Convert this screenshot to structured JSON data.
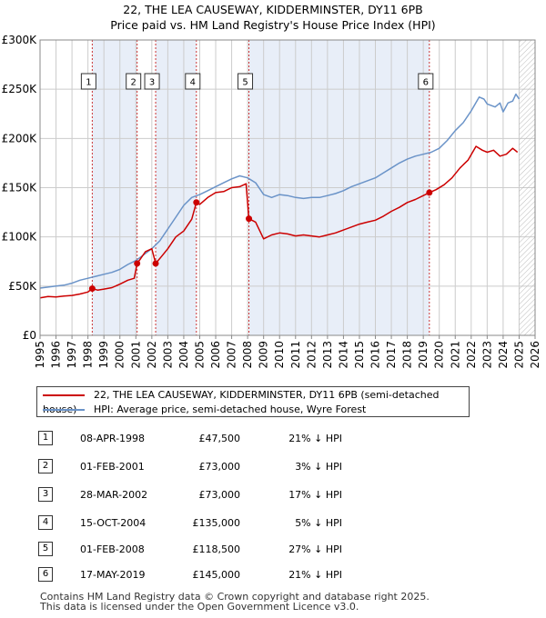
{
  "title_line1": "22, THE LEA CAUSEWAY, KIDDERMINSTER, DY11 6PB",
  "title_line2": "Price paid vs. HM Land Registry's House Price Index (HPI)",
  "colors": {
    "property": "#cc0000",
    "hpi": "#6a93c8",
    "shade": "#e8eef8",
    "marker_line": "#cc3333"
  },
  "chart_data": {
    "type": "line",
    "xlim": [
      1995,
      2026
    ],
    "ylim": [
      0,
      300000
    ],
    "y_ticks": [
      0,
      50000,
      100000,
      150000,
      200000,
      250000,
      300000
    ],
    "y_tick_labels": [
      "£0",
      "£50K",
      "£100K",
      "£150K",
      "£200K",
      "£250K",
      "£300K"
    ],
    "x_ticks": [
      1995,
      1996,
      1997,
      1998,
      1999,
      2000,
      2001,
      2002,
      2003,
      2004,
      2005,
      2006,
      2007,
      2008,
      2009,
      2010,
      2011,
      2012,
      2013,
      2014,
      2015,
      2016,
      2017,
      2018,
      2019,
      2020,
      2021,
      2022,
      2023,
      2024,
      2025,
      2026
    ],
    "x_tick_labels": [
      "1995",
      "1996",
      "1997",
      "1998",
      "1999",
      "2000",
      "2001",
      "2002",
      "2003",
      "2004",
      "2005",
      "2006",
      "2007",
      "2008",
      "2009",
      "2010",
      "2011",
      "2012",
      "2013",
      "2014",
      "2015",
      "2016",
      "2017",
      "2018",
      "2019",
      "2020",
      "2021",
      "2022",
      "2023",
      "2024",
      "2025",
      "2026"
    ],
    "future_hatch_from": 2025.0,
    "shaded_spans": [
      [
        1998.27,
        2001.08
      ],
      [
        2002.24,
        2004.79
      ],
      [
        2008.08,
        2019.38
      ]
    ],
    "series": [
      {
        "name": "22, THE LEA CAUSEWAY, KIDDERMINSTER, DY11 6PB (semi-detached house)",
        "color_key": "property",
        "points": [
          [
            1995.0,
            38000
          ],
          [
            1995.5,
            39500
          ],
          [
            1996.0,
            39000
          ],
          [
            1996.5,
            40000
          ],
          [
            1997.0,
            40500
          ],
          [
            1997.5,
            42000
          ],
          [
            1998.0,
            44000
          ],
          [
            1998.27,
            47500
          ],
          [
            1998.6,
            46000
          ],
          [
            1999.0,
            47000
          ],
          [
            1999.5,
            48500
          ],
          [
            2000.0,
            52000
          ],
          [
            2000.5,
            56000
          ],
          [
            2000.9,
            58000
          ],
          [
            2001.08,
            73000
          ],
          [
            2001.3,
            78000
          ],
          [
            2001.6,
            85000
          ],
          [
            2002.0,
            88000
          ],
          [
            2002.24,
            73000
          ],
          [
            2002.6,
            80000
          ],
          [
            2003.0,
            88000
          ],
          [
            2003.5,
            100000
          ],
          [
            2004.0,
            106000
          ],
          [
            2004.5,
            118000
          ],
          [
            2004.79,
            135000
          ],
          [
            2005.0,
            133000
          ],
          [
            2005.5,
            140000
          ],
          [
            2006.0,
            145000
          ],
          [
            2006.5,
            146000
          ],
          [
            2007.0,
            150000
          ],
          [
            2007.5,
            151000
          ],
          [
            2007.9,
            154000
          ],
          [
            2008.08,
            118500
          ],
          [
            2008.5,
            115000
          ],
          [
            2009.0,
            98000
          ],
          [
            2009.5,
            102000
          ],
          [
            2010.0,
            104000
          ],
          [
            2010.5,
            103000
          ],
          [
            2011.0,
            101000
          ],
          [
            2011.5,
            102000
          ],
          [
            2012.0,
            101000
          ],
          [
            2012.5,
            100000
          ],
          [
            2013.0,
            102000
          ],
          [
            2013.5,
            104000
          ],
          [
            2014.0,
            107000
          ],
          [
            2014.5,
            110000
          ],
          [
            2015.0,
            113000
          ],
          [
            2015.5,
            115000
          ],
          [
            2016.0,
            117000
          ],
          [
            2016.5,
            121000
          ],
          [
            2017.0,
            126000
          ],
          [
            2017.5,
            130000
          ],
          [
            2018.0,
            135000
          ],
          [
            2018.5,
            138000
          ],
          [
            2019.0,
            142000
          ],
          [
            2019.38,
            145000
          ],
          [
            2019.8,
            148000
          ],
          [
            2020.3,
            153000
          ],
          [
            2020.8,
            160000
          ],
          [
            2021.3,
            170000
          ],
          [
            2021.8,
            178000
          ],
          [
            2022.3,
            192000
          ],
          [
            2022.7,
            188000
          ],
          [
            2023.0,
            186000
          ],
          [
            2023.4,
            188000
          ],
          [
            2023.8,
            182000
          ],
          [
            2024.2,
            184000
          ],
          [
            2024.6,
            190000
          ],
          [
            2024.9,
            186000
          ]
        ]
      },
      {
        "name": "HPI: Average price, semi-detached house, Wyre Forest",
        "color_key": "hpi",
        "points": [
          [
            1995.0,
            48000
          ],
          [
            1995.5,
            49000
          ],
          [
            1996.0,
            50000
          ],
          [
            1996.5,
            51000
          ],
          [
            1997.0,
            53000
          ],
          [
            1997.5,
            56000
          ],
          [
            1998.0,
            58000
          ],
          [
            1998.5,
            60000
          ],
          [
            1999.0,
            62000
          ],
          [
            1999.5,
            64000
          ],
          [
            2000.0,
            67000
          ],
          [
            2000.5,
            72000
          ],
          [
            2001.0,
            76000
          ],
          [
            2001.5,
            82000
          ],
          [
            2002.0,
            88000
          ],
          [
            2002.5,
            96000
          ],
          [
            2003.0,
            108000
          ],
          [
            2003.5,
            120000
          ],
          [
            2004.0,
            132000
          ],
          [
            2004.5,
            140000
          ],
          [
            2005.0,
            143000
          ],
          [
            2005.5,
            147000
          ],
          [
            2006.0,
            151000
          ],
          [
            2006.5,
            155000
          ],
          [
            2007.0,
            159000
          ],
          [
            2007.5,
            162000
          ],
          [
            2008.0,
            160000
          ],
          [
            2008.5,
            155000
          ],
          [
            2009.0,
            143000
          ],
          [
            2009.5,
            140000
          ],
          [
            2010.0,
            143000
          ],
          [
            2010.5,
            142000
          ],
          [
            2011.0,
            140000
          ],
          [
            2011.5,
            139000
          ],
          [
            2012.0,
            140000
          ],
          [
            2012.5,
            140000
          ],
          [
            2013.0,
            142000
          ],
          [
            2013.5,
            144000
          ],
          [
            2014.0,
            147000
          ],
          [
            2014.5,
            151000
          ],
          [
            2015.0,
            154000
          ],
          [
            2015.5,
            157000
          ],
          [
            2016.0,
            160000
          ],
          [
            2016.5,
            165000
          ],
          [
            2017.0,
            170000
          ],
          [
            2017.5,
            175000
          ],
          [
            2018.0,
            179000
          ],
          [
            2018.5,
            182000
          ],
          [
            2019.0,
            184000
          ],
          [
            2019.5,
            186000
          ],
          [
            2020.0,
            190000
          ],
          [
            2020.5,
            198000
          ],
          [
            2021.0,
            208000
          ],
          [
            2021.5,
            216000
          ],
          [
            2022.0,
            228000
          ],
          [
            2022.5,
            242000
          ],
          [
            2022.8,
            240000
          ],
          [
            2023.0,
            235000
          ],
          [
            2023.5,
            232000
          ],
          [
            2023.8,
            236000
          ],
          [
            2024.0,
            227000
          ],
          [
            2024.3,
            236000
          ],
          [
            2024.6,
            238000
          ],
          [
            2024.8,
            245000
          ],
          [
            2025.0,
            240000
          ]
        ]
      }
    ],
    "sales": [
      {
        "id": "1",
        "x": 1998.27,
        "price": 47500
      },
      {
        "id": "2",
        "x": 2001.08,
        "price": 73000
      },
      {
        "id": "3",
        "x": 2002.24,
        "price": 73000
      },
      {
        "id": "4",
        "x": 2004.79,
        "price": 135000
      },
      {
        "id": "5",
        "x": 2008.08,
        "price": 118500
      },
      {
        "id": "6",
        "x": 2019.38,
        "price": 145000
      }
    ]
  },
  "legend": {
    "property_label": "22, THE LEA CAUSEWAY, KIDDERMINSTER, DY11 6PB (semi-detached house)",
    "hpi_label": "HPI: Average price, semi-detached house, Wyre Forest"
  },
  "sales_table": [
    {
      "num": "1",
      "date": "08-APR-1998",
      "price": "£47,500",
      "hpi": "21% ↓ HPI"
    },
    {
      "num": "2",
      "date": "01-FEB-2001",
      "price": "£73,000",
      "hpi": "3% ↓ HPI"
    },
    {
      "num": "3",
      "date": "28-MAR-2002",
      "price": "£73,000",
      "hpi": "17% ↓ HPI"
    },
    {
      "num": "4",
      "date": "15-OCT-2004",
      "price": "£135,000",
      "hpi": "5% ↓ HPI"
    },
    {
      "num": "5",
      "date": "01-FEB-2008",
      "price": "£118,500",
      "hpi": "27% ↓ HPI"
    },
    {
      "num": "6",
      "date": "17-MAY-2019",
      "price": "£145,000",
      "hpi": "21% ↓ HPI"
    }
  ],
  "footer": {
    "line1": "Contains HM Land Registry data © Crown copyright and database right 2025.",
    "line2": "This data is licensed under the Open Government Licence v3.0."
  }
}
